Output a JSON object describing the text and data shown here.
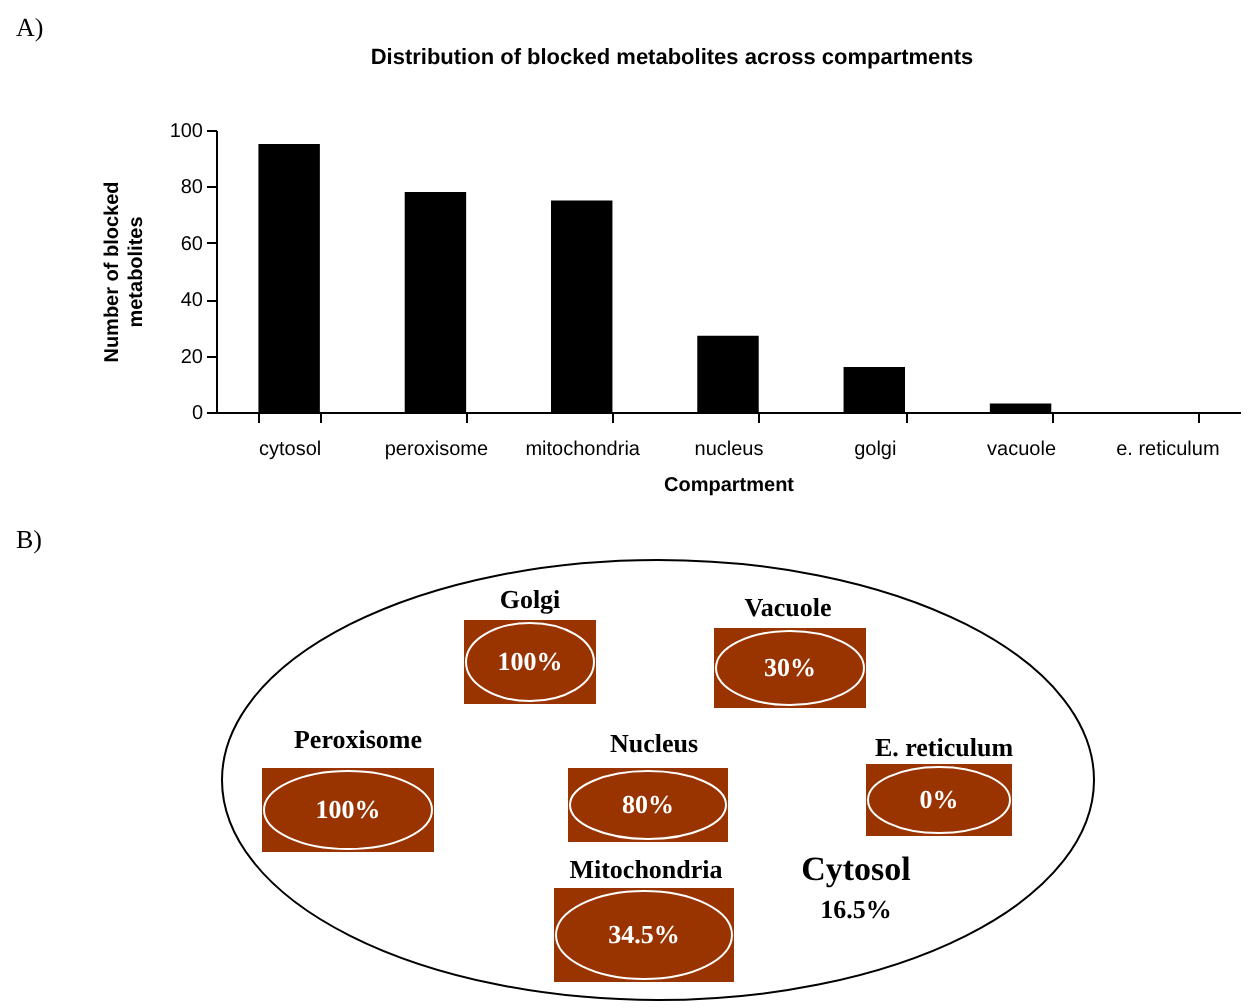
{
  "chart_data": [
    {
      "type": "bar",
      "title": "Distribution of blocked metabolites across compartments",
      "xlabel": "Compartment",
      "ylabel": "Number of blocked metabolites",
      "annotations": [
        "A)"
      ],
      "categories": [
        "cytosol",
        "peroxisome",
        "mitochondria",
        "nucleus",
        "golgi",
        "vacuole",
        "e. reticulum"
      ],
      "values": [
        95,
        78,
        75,
        27,
        16,
        3,
        0
      ],
      "color": "#000000",
      "ylim": [
        0,
        100
      ],
      "yticks": [
        0,
        20,
        40,
        60,
        80,
        100
      ],
      "grid": false
    },
    {
      "type": "other",
      "annotations": [
        "B)"
      ],
      "categories": [
        "Golgi",
        "Vacuole",
        "Peroxisome",
        "Nucleus",
        "E. reticulum",
        "Mitochondria",
        "Cytosol"
      ],
      "values": [
        100,
        30,
        100,
        80,
        0,
        34.5,
        16.5
      ],
      "value_labels": [
        "100%",
        "30%",
        "100%",
        "80%",
        "0%",
        "34.5%",
        "16.5%"
      ],
      "colors": [
        "#993300",
        "#993300",
        "#993300",
        "#993300",
        "#993300",
        "#993300",
        null
      ]
    }
  ]
}
